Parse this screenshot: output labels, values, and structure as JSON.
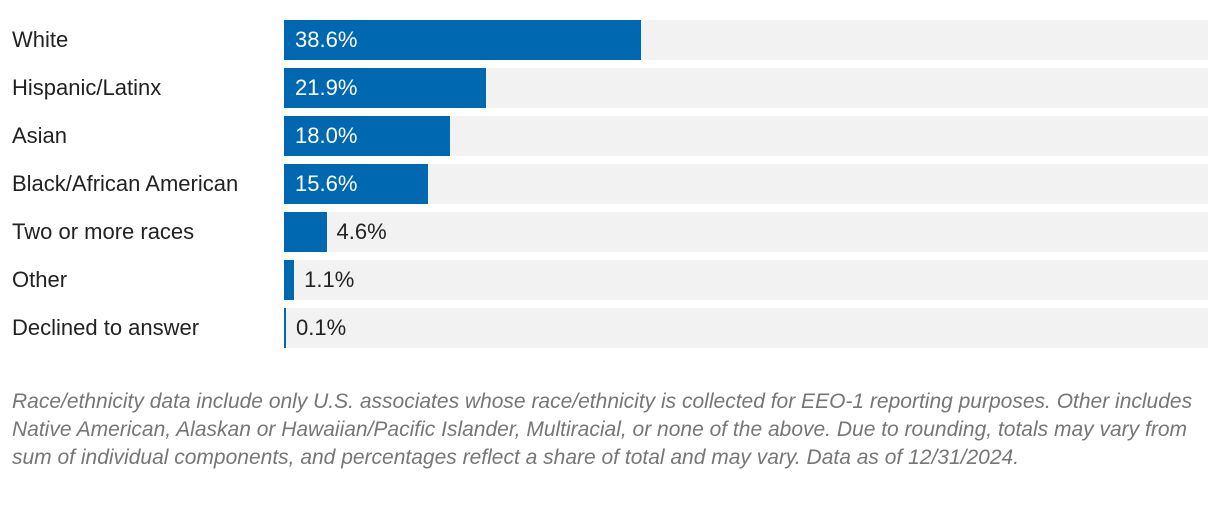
{
  "chart_data": {
    "type": "bar",
    "orientation": "horizontal",
    "categories": [
      "White",
      "Hispanic/Latinx",
      "Asian",
      "Black/African American",
      "Two or more races",
      "Other",
      "Declined to answer"
    ],
    "values": [
      38.6,
      21.9,
      18.0,
      15.6,
      4.6,
      1.1,
      0.1
    ],
    "value_labels": [
      "38.6%",
      "21.9%",
      "18.0%",
      "15.6%",
      "4.6%",
      "1.1%",
      "0.1%"
    ],
    "xlim": [
      0,
      100
    ],
    "grid": false,
    "legend": "none",
    "colors": {
      "bar": "#0067b1",
      "track": "#f2f2f2"
    }
  },
  "footnote": "Race/ethnicity data include only U.S. associates whose race/ethnicity is collected for EEO-1 reporting purposes. Other includes Native American, Alaskan or Hawaiian/Pacific Islander, Multiracial, or none of the above. Due to rounding, totals may vary from sum of individual components, and percentages reflect a share of total and may vary. Data as of 12/31/2024."
}
